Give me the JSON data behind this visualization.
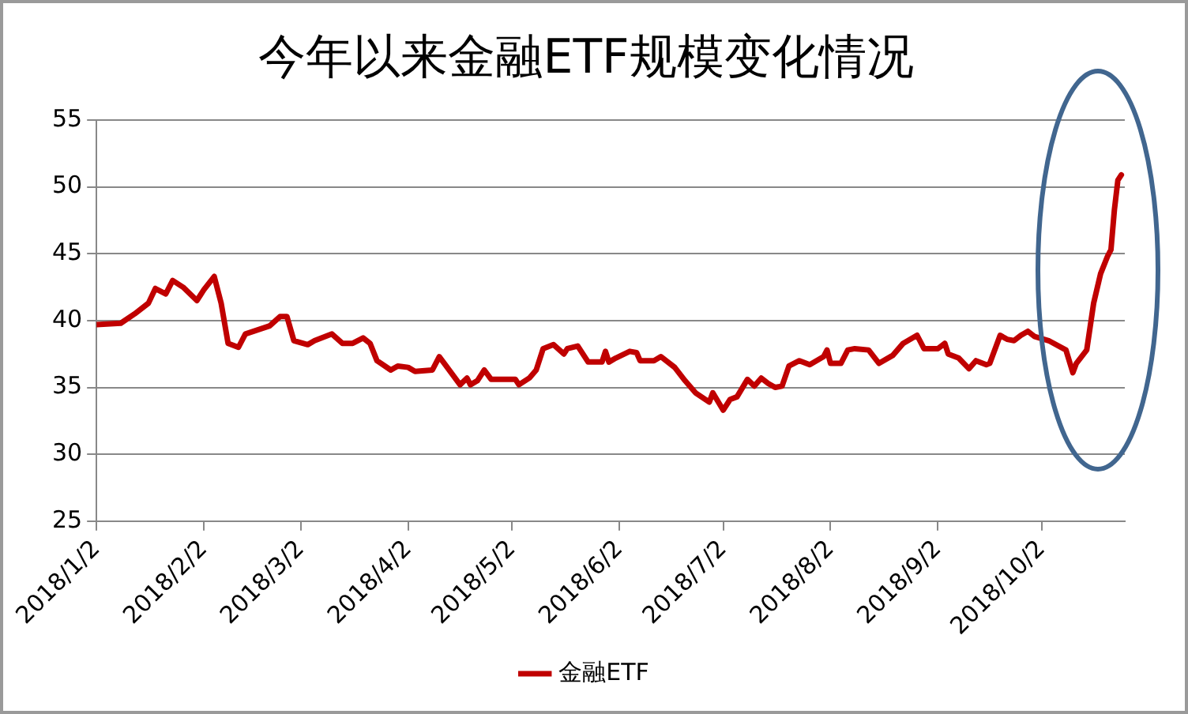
{
  "chart_data": {
    "type": "line",
    "title": "今年以来金融ETF规模变化情况",
    "x": [
      "2018-01-02",
      "2018-01-09",
      "2018-01-13",
      "2018-01-17",
      "2018-01-19",
      "2018-01-22",
      "2018-01-24",
      "2018-01-27",
      "2018-01-31",
      "2018-02-02",
      "2018-02-05",
      "2018-02-07",
      "2018-02-09",
      "2018-02-12",
      "2018-02-14",
      "2018-02-21",
      "2018-02-24",
      "2018-02-26",
      "2018-02-28",
      "2018-03-04",
      "2018-03-06",
      "2018-03-11",
      "2018-03-14",
      "2018-03-17",
      "2018-03-20",
      "2018-03-22",
      "2018-03-24",
      "2018-03-28",
      "2018-03-30",
      "2018-04-02",
      "2018-04-04",
      "2018-04-09",
      "2018-04-11",
      "2018-04-13",
      "2018-04-17",
      "2018-04-19",
      "2018-04-20",
      "2018-04-22",
      "2018-04-24",
      "2018-04-26",
      "2018-05-03",
      "2018-05-04",
      "2018-05-07",
      "2018-05-09",
      "2018-05-11",
      "2018-05-14",
      "2018-05-17",
      "2018-05-18",
      "2018-05-21",
      "2018-05-24",
      "2018-05-28",
      "2018-05-29",
      "2018-05-30",
      "2018-06-01",
      "2018-06-05",
      "2018-06-07",
      "2018-06-08",
      "2018-06-12",
      "2018-06-14",
      "2018-06-18",
      "2018-06-21",
      "2018-06-24",
      "2018-06-28",
      "2018-06-29",
      "2018-07-02",
      "2018-07-04",
      "2018-07-06",
      "2018-07-09",
      "2018-07-11",
      "2018-07-13",
      "2018-07-15",
      "2018-07-17",
      "2018-07-19",
      "2018-07-21",
      "2018-07-24",
      "2018-07-27",
      "2018-07-31",
      "2018-08-01",
      "2018-08-02",
      "2018-08-05",
      "2018-08-07",
      "2018-08-09",
      "2018-08-13",
      "2018-08-16",
      "2018-08-20",
      "2018-08-23",
      "2018-08-27",
      "2018-08-29",
      "2018-09-02",
      "2018-09-04",
      "2018-09-05",
      "2018-09-08",
      "2018-09-11",
      "2018-09-13",
      "2018-09-16",
      "2018-09-17",
      "2018-09-20",
      "2018-09-22",
      "2018-09-24",
      "2018-09-26",
      "2018-09-28",
      "2018-09-30",
      "2018-10-04",
      "2018-10-09",
      "2018-10-11",
      "2018-10-12",
      "2018-10-15",
      "2018-10-17",
      "2018-10-19",
      "2018-10-21",
      "2018-10-22",
      "2018-10-23",
      "2018-10-24",
      "2018-10-25"
    ],
    "series": [
      {
        "name": "金融ETF",
        "color": "#c00000",
        "values": [
          39.7,
          39.8,
          40.5,
          41.3,
          42.4,
          42.0,
          43.0,
          42.5,
          41.5,
          42.3,
          43.3,
          41.3,
          38.3,
          38.0,
          39.0,
          39.6,
          40.3,
          40.3,
          38.5,
          38.2,
          38.5,
          39.0,
          38.3,
          38.3,
          38.7,
          38.3,
          37.0,
          36.3,
          36.6,
          36.5,
          36.2,
          36.3,
          37.3,
          36.6,
          35.2,
          35.7,
          35.2,
          35.5,
          36.3,
          35.6,
          35.6,
          35.2,
          35.7,
          36.3,
          37.9,
          38.2,
          37.5,
          37.9,
          38.1,
          36.9,
          36.9,
          37.7,
          36.9,
          37.2,
          37.7,
          37.6,
          37.0,
          37.0,
          37.3,
          36.5,
          35.5,
          34.6,
          33.9,
          34.6,
          33.3,
          34.1,
          34.3,
          35.6,
          35.1,
          35.7,
          35.3,
          35.0,
          35.1,
          36.6,
          37.0,
          36.7,
          37.3,
          37.8,
          36.8,
          36.8,
          37.8,
          37.9,
          37.8,
          36.8,
          37.4,
          38.3,
          38.9,
          37.9,
          37.9,
          38.3,
          37.5,
          37.2,
          36.4,
          37.0,
          36.7,
          36.8,
          38.9,
          38.6,
          38.5,
          38.9,
          39.2,
          38.8,
          38.5,
          37.8,
          36.1,
          36.8,
          37.8,
          41.3,
          43.5,
          44.8,
          45.3,
          48.3,
          50.5,
          50.9
        ]
      }
    ],
    "xlim": [
      "2018-01-02",
      "2018-10-26"
    ],
    "xticks": [
      {
        "value": "2018-01-02",
        "label": "2018/1/2"
      },
      {
        "value": "2018-02-02",
        "label": "2018/2/2"
      },
      {
        "value": "2018-03-02",
        "label": "2018/3/2"
      },
      {
        "value": "2018-04-02",
        "label": "2018/4/2"
      },
      {
        "value": "2018-05-02",
        "label": "2018/5/2"
      },
      {
        "value": "2018-06-02",
        "label": "2018/6/2"
      },
      {
        "value": "2018-07-02",
        "label": "2018/7/2"
      },
      {
        "value": "2018-08-02",
        "label": "2018/8/2"
      },
      {
        "value": "2018-09-02",
        "label": "2018/9/2"
      },
      {
        "value": "2018-10-02",
        "label": "2018/10/2"
      }
    ],
    "ylim": [
      25,
      55
    ],
    "yticks": [
      25,
      30,
      35,
      40,
      45,
      50,
      55
    ],
    "grid": "y",
    "legend": "bottom",
    "marker": "none",
    "line_style": "solid"
  }
}
